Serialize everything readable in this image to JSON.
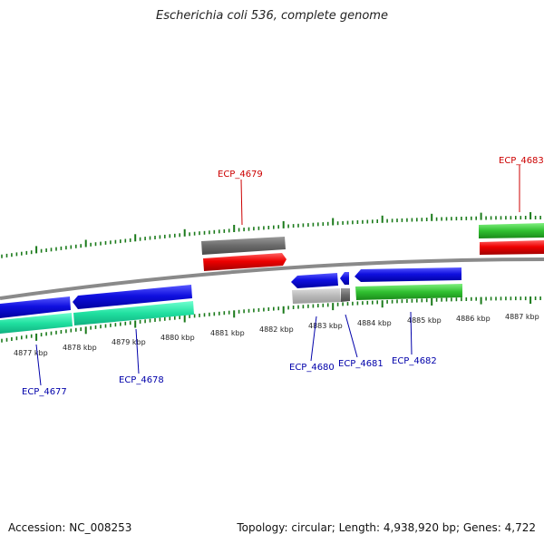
{
  "title": "Escherichia coli 536, complete genome",
  "footer": {
    "accession": "Accession: NC_008253",
    "summary": "Topology: circular; Length: 4,938,920 bp; Genes: 4,722"
  },
  "colors": {
    "backbone": "#8a8a8a",
    "tick": "#1a7a1a",
    "blue_gene": "#1010e0",
    "teal_gene": "#20e0a0",
    "red_gene": "#ee0000",
    "grey_gene": "#6a6a6a",
    "lightgrey_gene": "#b8b8b8",
    "green_gene": "#30c030",
    "red_label": "#cc0000",
    "blue_label": "#0000aa"
  },
  "scale_labels": [
    "4877 kbp",
    "4878 kbp",
    "4879 kbp",
    "4880 kbp",
    "4881 kbp",
    "4882 kbp",
    "4883 kbp",
    "4884 kbp",
    "4885 kbp",
    "4886 kbp",
    "4887 kbp"
  ],
  "gene_labels": {
    "top": [
      "ECP_4679",
      "ECP_4683"
    ],
    "bottom": [
      "ECP_4677",
      "ECP_4678",
      "ECP_4680",
      "ECP_4681",
      "ECP_4682"
    ]
  }
}
